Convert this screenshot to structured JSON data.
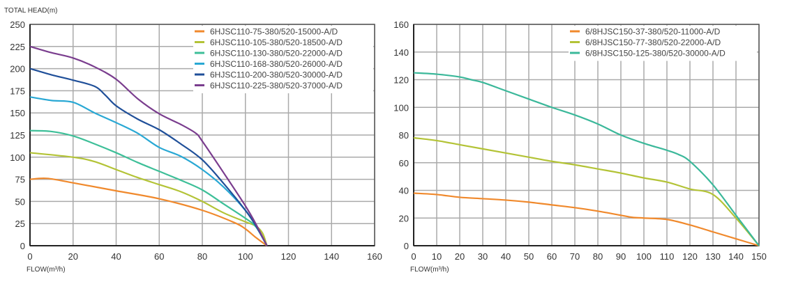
{
  "chart_data": [
    {
      "type": "line",
      "title": "",
      "ylabel": "TOTAL HEAD(m)",
      "xlabel": "FLOW(m³/h)",
      "xlim": [
        0,
        160
      ],
      "ylim": [
        0,
        250
      ],
      "xticks": [
        0,
        20,
        40,
        60,
        80,
        100,
        120,
        140,
        160
      ],
      "yticks": [
        0,
        25,
        50,
        75,
        100,
        125,
        150,
        175,
        200,
        225,
        250
      ],
      "grid": true,
      "legend_position": "top-right",
      "series": [
        {
          "name": "6HJSC110-75-380/520-15000-A/D",
          "color": "#f0892c",
          "points": [
            [
              0,
              75
            ],
            [
              8,
              76
            ],
            [
              20,
              71
            ],
            [
              40,
              62
            ],
            [
              60,
              53
            ],
            [
              80,
              40
            ],
            [
              95,
              26
            ],
            [
              100,
              19
            ],
            [
              105,
              9
            ],
            [
              110,
              0
            ]
          ]
        },
        {
          "name": "6HJSC110-105-380/520-18500-A/D",
          "color": "#b3c336",
          "points": [
            [
              0,
              105
            ],
            [
              20,
              100
            ],
            [
              30,
              95
            ],
            [
              40,
              86
            ],
            [
              50,
              77
            ],
            [
              60,
              69
            ],
            [
              70,
              61
            ],
            [
              80,
              50
            ],
            [
              90,
              37
            ],
            [
              100,
              27
            ],
            [
              105,
              22
            ],
            [
              108,
              14
            ],
            [
              110,
              0
            ]
          ]
        },
        {
          "name": "6HJSC110-130-380/520-22000-A/D",
          "color": "#3dbf98",
          "points": [
            [
              0,
              130
            ],
            [
              10,
              129
            ],
            [
              20,
              124
            ],
            [
              30,
              115
            ],
            [
              40,
              105
            ],
            [
              50,
              94
            ],
            [
              60,
              84
            ],
            [
              70,
              74
            ],
            [
              80,
              63
            ],
            [
              90,
              47
            ],
            [
              100,
              31
            ],
            [
              105,
              21
            ],
            [
              110,
              0
            ]
          ]
        },
        {
          "name": "6HJSC110-168-380/520-26000-A/D",
          "color": "#29a8d4",
          "points": [
            [
              0,
              168
            ],
            [
              10,
              164
            ],
            [
              20,
              162
            ],
            [
              30,
              150
            ],
            [
              40,
              139
            ],
            [
              50,
              127
            ],
            [
              60,
              111
            ],
            [
              70,
              101
            ],
            [
              80,
              86
            ],
            [
              90,
              66
            ],
            [
              100,
              40
            ],
            [
              105,
              22
            ],
            [
              110,
              0
            ]
          ]
        },
        {
          "name": "6HJSC110-200-380/520-30000-A/D",
          "color": "#1f4f99",
          "points": [
            [
              0,
              200
            ],
            [
              10,
              193
            ],
            [
              20,
              187
            ],
            [
              30,
              180
            ],
            [
              35,
              170
            ],
            [
              40,
              158
            ],
            [
              50,
              143
            ],
            [
              60,
              131
            ],
            [
              70,
              115
            ],
            [
              80,
              97
            ],
            [
              90,
              70
            ],
            [
              100,
              40
            ],
            [
              105,
              22
            ],
            [
              110,
              0
            ]
          ]
        },
        {
          "name": "6HJSC110-225-380/520-37000-A/D",
          "color": "#7a3d8e",
          "points": [
            [
              0,
              225
            ],
            [
              10,
              218
            ],
            [
              20,
              212
            ],
            [
              30,
              202
            ],
            [
              40,
              188
            ],
            [
              50,
              166
            ],
            [
              60,
              149
            ],
            [
              70,
              137
            ],
            [
              77,
              127
            ],
            [
              80,
              118
            ],
            [
              90,
              82
            ],
            [
              100,
              45
            ],
            [
              105,
              24
            ],
            [
              110,
              0
            ]
          ]
        }
      ]
    },
    {
      "type": "line",
      "title": "",
      "ylabel": "",
      "xlabel": "FLOW(m³/h)",
      "xlim": [
        0,
        150
      ],
      "ylim": [
        0,
        160
      ],
      "xticks": [
        0,
        10,
        20,
        30,
        40,
        50,
        60,
        70,
        80,
        90,
        100,
        110,
        120,
        130,
        140,
        150
      ],
      "yticks": [
        0,
        20,
        40,
        60,
        80,
        100,
        120,
        140,
        160
      ],
      "grid": true,
      "legend_position": "top-right",
      "series": [
        {
          "name": "6/8HJSC150-37-380/520-11000-A/D",
          "color": "#f0892c",
          "points": [
            [
              0,
              38
            ],
            [
              10,
              37
            ],
            [
              20,
              35
            ],
            [
              30,
              34
            ],
            [
              40,
              33
            ],
            [
              50,
              31.5
            ],
            [
              60,
              29.5
            ],
            [
              70,
              27.5
            ],
            [
              80,
              25
            ],
            [
              90,
              22
            ],
            [
              95,
              20.5
            ],
            [
              100,
              20
            ],
            [
              110,
              19
            ],
            [
              120,
              15
            ],
            [
              130,
              10
            ],
            [
              140,
              5
            ],
            [
              150,
              0
            ]
          ]
        },
        {
          "name": "6/8HJSC150-77-380/520-22000-A/D",
          "color": "#b3c336",
          "points": [
            [
              0,
              78
            ],
            [
              10,
              76
            ],
            [
              20,
              73
            ],
            [
              30,
              70
            ],
            [
              40,
              67
            ],
            [
              50,
              64
            ],
            [
              60,
              61
            ],
            [
              70,
              58.5
            ],
            [
              80,
              55.5
            ],
            [
              90,
              52.5
            ],
            [
              100,
              49
            ],
            [
              110,
              46
            ],
            [
              120,
              41
            ],
            [
              130,
              37
            ],
            [
              140,
              20
            ],
            [
              150,
              0
            ]
          ]
        },
        {
          "name": "6/8HJSC150-125-380/520-30000-A/D",
          "color": "#3bb89a",
          "points": [
            [
              0,
              125
            ],
            [
              10,
              124
            ],
            [
              20,
              122
            ],
            [
              25,
              120
            ],
            [
              30,
              118
            ],
            [
              40,
              112
            ],
            [
              50,
              106
            ],
            [
              60,
              100
            ],
            [
              70,
              94.5
            ],
            [
              80,
              88
            ],
            [
              90,
              80
            ],
            [
              100,
              74
            ],
            [
              110,
              69
            ],
            [
              115,
              66
            ],
            [
              120,
              61
            ],
            [
              130,
              44
            ],
            [
              140,
              22
            ],
            [
              150,
              0
            ]
          ]
        }
      ]
    }
  ]
}
